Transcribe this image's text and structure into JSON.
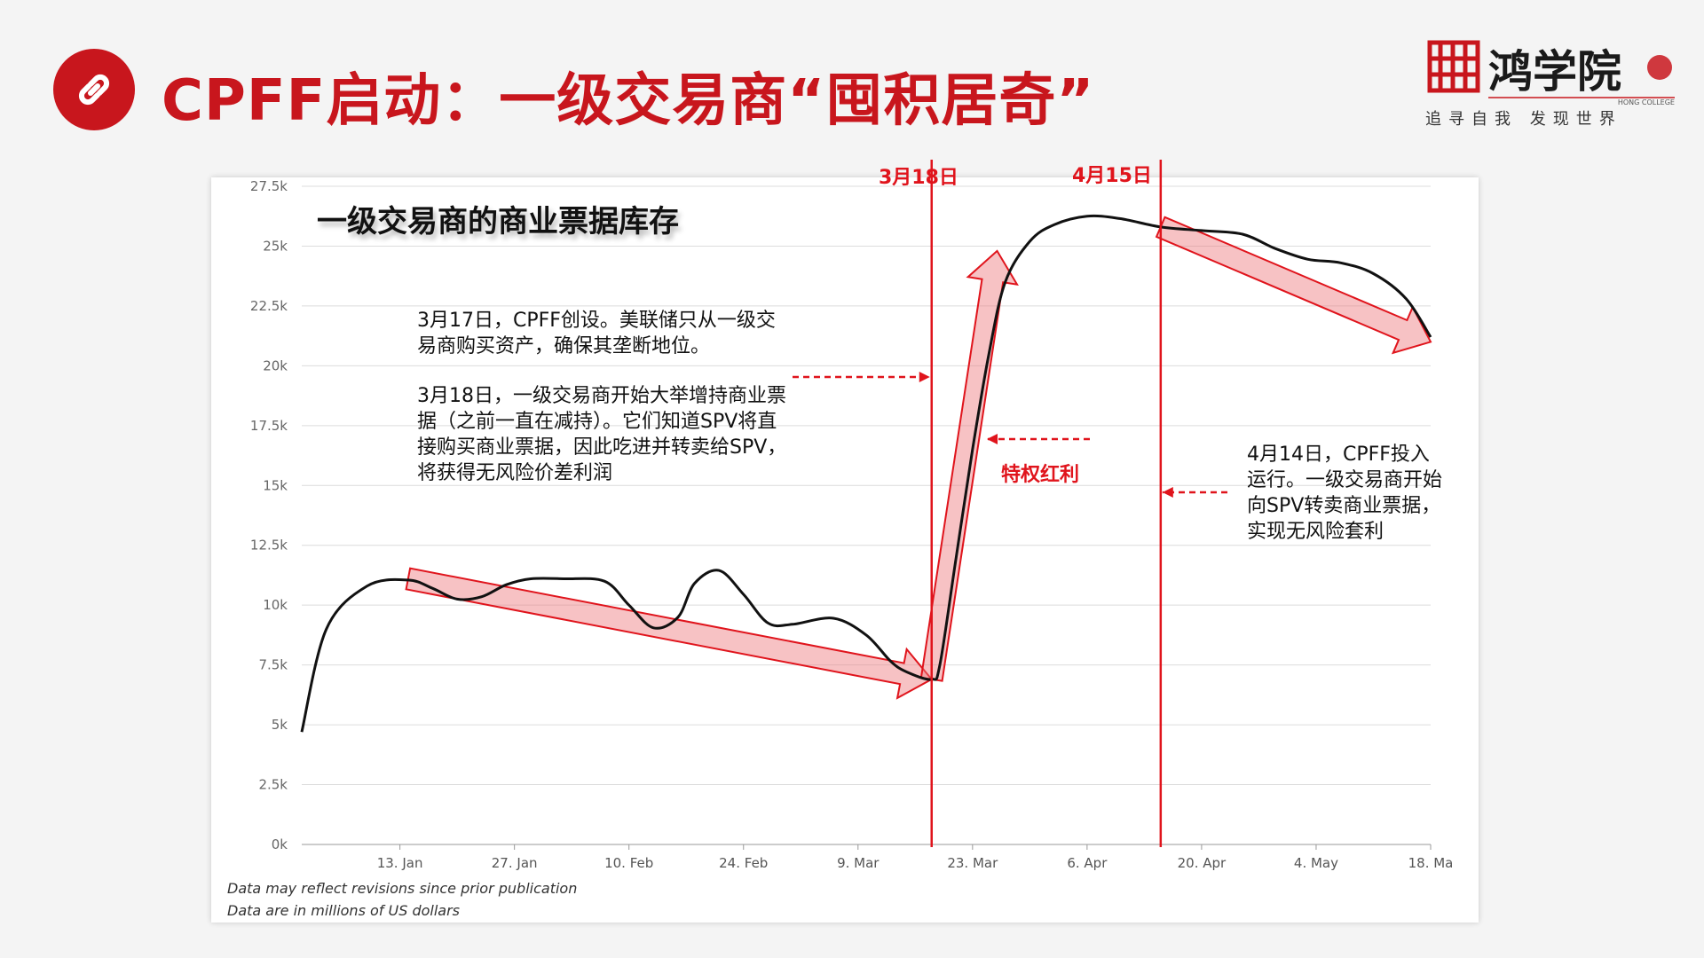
{
  "header": {
    "title": "CPFF启动：一级交易商“囤积居奇”",
    "icon": "link-icon",
    "accent_color": "#c8161d"
  },
  "logo": {
    "name": "鸿学院",
    "subtitle": "HONG COLLEGE",
    "slogan": "追寻自我  发现世界"
  },
  "chart_data": {
    "type": "line",
    "title": "一级交易商的商业票据库存",
    "ylabel": "",
    "xlabel": "",
    "ylim": [
      0,
      27500
    ],
    "yticks": [
      0,
      2500,
      5000,
      7500,
      10000,
      12500,
      15000,
      17500,
      20000,
      22500,
      25000,
      27500
    ],
    "ytick_labels": [
      "0k",
      "2.5k",
      "5k",
      "7.5k",
      "10k",
      "12.5k",
      "15k",
      "17.5k",
      "20k",
      "22.5k",
      "25k",
      "27.5k"
    ],
    "xtick_labels": [
      "13. Jan",
      "27. Jan",
      "10. Feb",
      "24. Feb",
      "9. Mar",
      "23. Mar",
      "6. Apr",
      "20. Apr",
      "4. May",
      "18. Ma"
    ],
    "grid": true,
    "line_color": "#111111",
    "series": [
      {
        "points": [
          [
            "2020-01-01",
            4700
          ],
          [
            "2020-01-04",
            9000
          ],
          [
            "2020-01-09",
            10800
          ],
          [
            "2020-01-14",
            11050
          ],
          [
            "2020-01-17",
            10700
          ],
          [
            "2020-01-20",
            10250
          ],
          [
            "2020-01-23",
            10350
          ],
          [
            "2020-01-26",
            10850
          ],
          [
            "2020-01-29",
            11100
          ],
          [
            "2020-02-02",
            11100
          ],
          [
            "2020-02-07",
            11000
          ],
          [
            "2020-02-10",
            10000
          ],
          [
            "2020-02-13",
            9050
          ],
          [
            "2020-02-16",
            9500
          ],
          [
            "2020-02-18",
            10900
          ],
          [
            "2020-02-21",
            11450
          ],
          [
            "2020-02-24",
            10450
          ],
          [
            "2020-02-27",
            9250
          ],
          [
            "2020-03-01",
            9200
          ],
          [
            "2020-03-06",
            9450
          ],
          [
            "2020-03-10",
            8750
          ],
          [
            "2020-03-13",
            7650
          ],
          [
            "2020-03-15",
            7200
          ],
          [
            "2020-03-18",
            6900
          ],
          [
            "2020-03-19",
            7500
          ],
          [
            "2020-03-21",
            12000
          ],
          [
            "2020-03-23",
            16500
          ],
          [
            "2020-03-25",
            20500
          ],
          [
            "2020-03-27",
            23500
          ],
          [
            "2020-03-30",
            25200
          ],
          [
            "2020-04-02",
            25900
          ],
          [
            "2020-04-06",
            26250
          ],
          [
            "2020-04-10",
            26150
          ],
          [
            "2020-04-15",
            25800
          ],
          [
            "2020-04-20",
            25650
          ],
          [
            "2020-04-25",
            25500
          ],
          [
            "2020-04-29",
            24900
          ],
          [
            "2020-05-03",
            24450
          ],
          [
            "2020-05-07",
            24300
          ],
          [
            "2020-05-11",
            23850
          ],
          [
            "2020-05-15",
            22800
          ],
          [
            "2020-05-18",
            21200
          ]
        ]
      }
    ],
    "trend_arrows": [
      {
        "from": [
          "2020-01-14",
          11100
        ],
        "to": [
          "2020-03-18",
          6900
        ],
        "label": "下降"
      },
      {
        "from": [
          "2020-03-18",
          6900
        ],
        "to": [
          "2020-03-26",
          24800
        ],
        "label": "上升"
      },
      {
        "from": [
          "2020-04-15",
          25800
        ],
        "to": [
          "2020-05-18",
          21000
        ],
        "label": "下降"
      }
    ],
    "vertical_lines": [
      {
        "date": "2020-03-18",
        "label": "3月18日",
        "color": "#e0141c"
      },
      {
        "date": "2020-04-15",
        "label": "4月15日",
        "color": "#e0141c"
      }
    ],
    "annotations": {
      "note1": "3月17日，CPFF创设。美联储只从一级交易商购买资产，确保其垄断地位。",
      "note2": "3月18日，一级交易商开始大举增持商业票据（之前一直在减持）。它们知道SPV将直接购买商业票据，因此吃进并转卖给SPV，将获得无风险价差利润",
      "note3": "4月14日，CPFF投入运行。一级交易商开始向SPV转卖商业票据，实现无风险套利",
      "privilege": "特权红利"
    },
    "footnotes": [
      "Data may reflect revisions since prior publication",
      "Data are in millions of US dollars"
    ]
  }
}
